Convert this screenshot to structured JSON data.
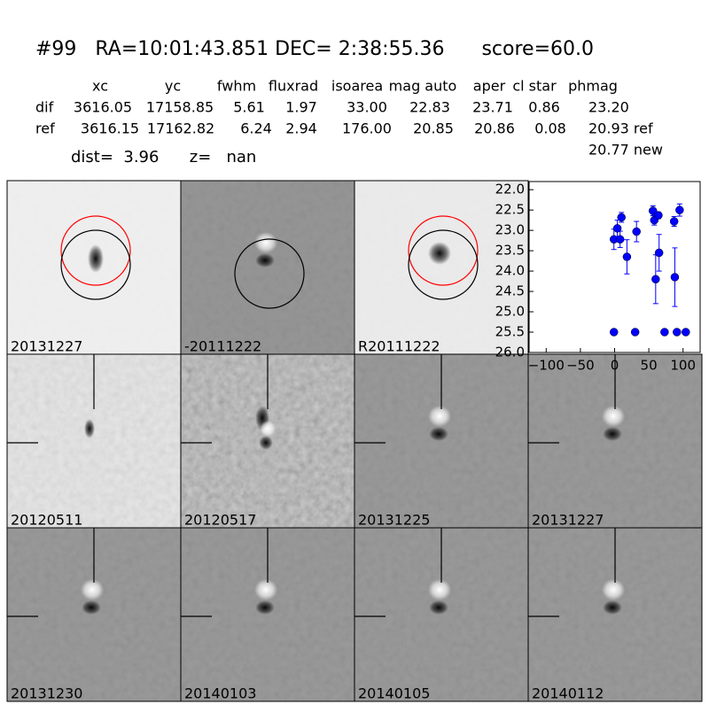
{
  "header": {
    "title": "#99   RA=10:01:43.851 DEC= 2:38:55.36      score=60.0"
  },
  "table": {
    "columns": [
      "xc",
      "yc",
      "fwhm",
      "fluxrad",
      "isoarea",
      "mag auto",
      "aper",
      "cl star",
      "phmag"
    ],
    "rows": [
      [
        "dif",
        "3616.05",
        "17158.85",
        "5.61",
        "1.97",
        "33.00",
        "22.83",
        "23.71",
        "0.86",
        "23.20"
      ],
      [
        "ref",
        "3616.15",
        "17162.82",
        "6.24",
        "2.94",
        "176.00",
        "20.85",
        "20.86",
        "0.08",
        "20.93 ref"
      ]
    ],
    "footnote": "20.77 new"
  },
  "summary": "dist=  3.96      z=   nan",
  "panels": [
    {
      "label": "20131227"
    },
    {
      "label": "-20111222"
    },
    {
      "label": "R20111222"
    },
    {
      "label": "20120511"
    },
    {
      "label": "20120517"
    },
    {
      "label": "20131225"
    },
    {
      "label": "20131227",
      "label_color": "#ff0000"
    },
    {
      "label": "20131230"
    },
    {
      "label": "20140103"
    },
    {
      "label": "20140105"
    },
    {
      "label": "20140112"
    }
  ],
  "chart_data": {
    "type": "scatter",
    "x": [
      -1,
      8,
      4,
      10,
      18,
      32,
      56,
      58,
      64,
      60,
      65,
      87,
      95,
      88,
      -1,
      30,
      73,
      91,
      104
    ],
    "series": [
      {
        "color": "#0000ff",
        "values": [
          23.22,
          23.22,
          22.95,
          22.68,
          23.65,
          23.03,
          22.52,
          22.75,
          22.63,
          24.2,
          23.55,
          22.78,
          22.5,
          24.15,
          25.5,
          25.5,
          25.5,
          25.5,
          25.5
        ],
        "errors": [
          0.25,
          0.2,
          0.2,
          0.12,
          0.42,
          0.25,
          0.12,
          0.12,
          0.08,
          0.6,
          0.45,
          0.12,
          0.15,
          0.72,
          0.05,
          0.05,
          0.05,
          0.05,
          0.05
        ]
      }
    ],
    "xlim": [
      -125,
      125
    ],
    "ylim": [
      26.0,
      21.8
    ],
    "xticks": [
      {
        "value": -100,
        "label": "−100"
      },
      {
        "value": -50,
        "label": "−50"
      },
      0,
      50,
      100
    ],
    "yticks": [
      {
        "value": 22,
        "label": "22.0"
      },
      22.5,
      {
        "value": 23,
        "label": "23.0"
      },
      23.5,
      {
        "value": 24,
        "label": "24.0"
      },
      24.5,
      {
        "value": 25,
        "label": "25.0"
      },
      25.5,
      {
        "value": 26,
        "label": "26.0"
      }
    ]
  }
}
